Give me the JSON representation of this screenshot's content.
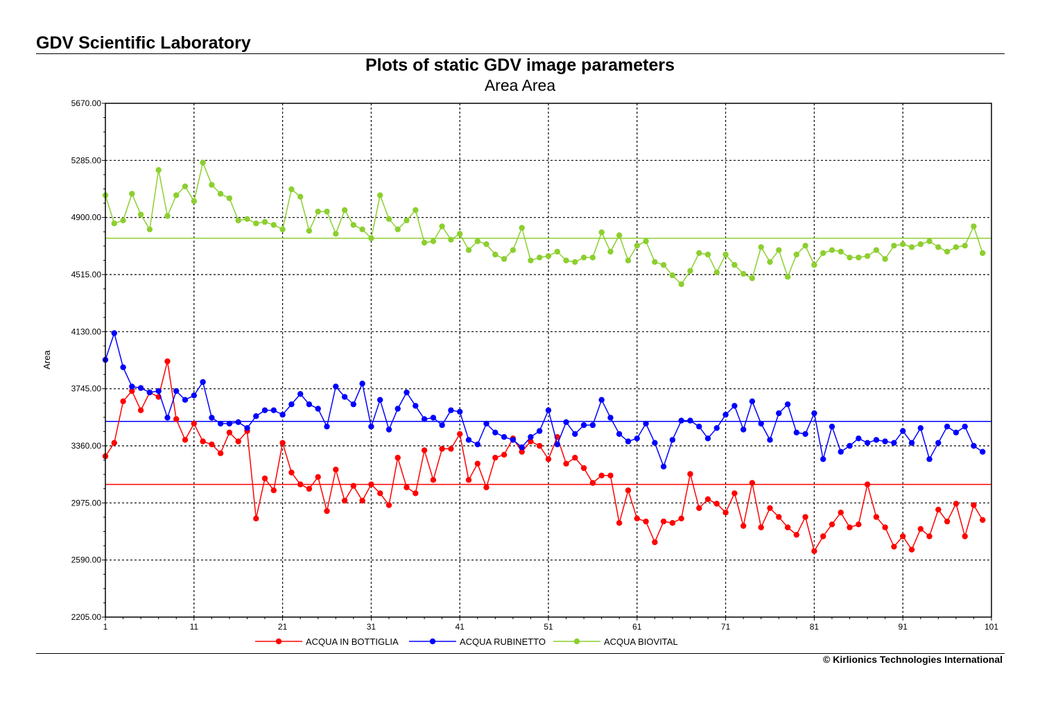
{
  "header": {
    "lab_title": "GDV Scientific Laboratory"
  },
  "footer": {
    "copyright": "© Kirlionics Technologies International"
  },
  "chart_data": {
    "type": "line",
    "title": "Plots of static GDV image parameters",
    "subtitle": "Area Area",
    "xlabel": "",
    "ylabel": "Area",
    "xlim": [
      1,
      101
    ],
    "ylim": [
      2205,
      5670
    ],
    "x_ticks": [
      1,
      11,
      21,
      31,
      41,
      51,
      61,
      71,
      81,
      91,
      101
    ],
    "y_ticks": [
      2205,
      2590,
      2975,
      3360,
      3745,
      4130,
      4515,
      4900,
      5285,
      5670
    ],
    "y_tick_labels": [
      "2205.00",
      "2590.00",
      "2975.00",
      "3360.00",
      "3745.00",
      "4130.00",
      "4515.00",
      "4900.00",
      "5285.00",
      "5670.00"
    ],
    "grid": true,
    "legend_position": "bottom",
    "series": [
      {
        "name": "ACQUA IN BOTTIGLIA",
        "color": "#ff0000",
        "mean": 3100,
        "values": [
          3290,
          3380,
          3660,
          3730,
          3600,
          3720,
          3690,
          3930,
          3540,
          3400,
          3510,
          3390,
          3370,
          3310,
          3450,
          3390,
          3460,
          2870,
          3140,
          3060,
          3380,
          3180,
          3100,
          3070,
          3150,
          2920,
          3200,
          2990,
          3090,
          2990,
          3100,
          3040,
          2960,
          3280,
          3080,
          3040,
          3330,
          3130,
          3340,
          3340,
          3440,
          3130,
          3240,
          3080,
          3280,
          3300,
          3410,
          3320,
          3390,
          3360,
          3270,
          3420,
          3240,
          3280,
          3210,
          3110,
          3160,
          3160,
          2840,
          3060,
          2870,
          2850,
          2710,
          2850,
          2840,
          2870,
          3170,
          2940,
          3000,
          2970,
          2910,
          3040,
          2820,
          3110,
          2810,
          2940,
          2880,
          2810,
          2760,
          2880,
          2650,
          2750,
          2830,
          2910,
          2810,
          2830,
          3100,
          2880,
          2810,
          2680,
          2750,
          2660,
          2800,
          2750,
          2930,
          2850,
          2970,
          2750,
          2960,
          2860
        ]
      },
      {
        "name": "ACQUA RUBINETTO",
        "color": "#0000ff",
        "mean": 3525,
        "values": [
          3940,
          4120,
          3890,
          3760,
          3750,
          3720,
          3730,
          3550,
          3730,
          3670,
          3700,
          3790,
          3550,
          3510,
          3510,
          3520,
          3480,
          3560,
          3600,
          3600,
          3570,
          3640,
          3710,
          3640,
          3610,
          3490,
          3760,
          3690,
          3640,
          3780,
          3490,
          3670,
          3470,
          3610,
          3720,
          3630,
          3540,
          3550,
          3500,
          3600,
          3590,
          3400,
          3370,
          3510,
          3450,
          3420,
          3400,
          3350,
          3420,
          3460,
          3600,
          3370,
          3520,
          3440,
          3500,
          3500,
          3670,
          3550,
          3440,
          3390,
          3410,
          3510,
          3380,
          3220,
          3400,
          3530,
          3530,
          3490,
          3410,
          3480,
          3570,
          3630,
          3470,
          3660,
          3510,
          3400,
          3580,
          3640,
          3450,
          3440,
          3580,
          3270,
          3490,
          3320,
          3360,
          3410,
          3380,
          3400,
          3390,
          3380,
          3460,
          3380,
          3480,
          3270,
          3380,
          3490,
          3450,
          3490,
          3360,
          3320
        ]
      },
      {
        "name": "ACQUA BIOVITAL",
        "color": "#8ccf2f",
        "mean": 4760,
        "values": [
          5050,
          4860,
          4880,
          5060,
          4920,
          4820,
          5220,
          4910,
          5050,
          5110,
          5010,
          5270,
          5120,
          5060,
          5030,
          4880,
          4890,
          4860,
          4870,
          4850,
          4820,
          5090,
          5040,
          4810,
          4940,
          4940,
          4790,
          4950,
          4850,
          4820,
          4760,
          5050,
          4890,
          4820,
          4880,
          4950,
          4730,
          4740,
          4840,
          4750,
          4790,
          4680,
          4740,
          4720,
          4650,
          4620,
          4680,
          4830,
          4610,
          4630,
          4640,
          4670,
          4610,
          4600,
          4630,
          4630,
          4800,
          4670,
          4780,
          4610,
          4710,
          4740,
          4600,
          4580,
          4510,
          4450,
          4540,
          4660,
          4650,
          4530,
          4650,
          4580,
          4520,
          4490,
          4700,
          4600,
          4680,
          4500,
          4650,
          4710,
          4580,
          4660,
          4680,
          4670,
          4630,
          4630,
          4640,
          4680,
          4620,
          4710,
          4720,
          4700,
          4720,
          4740,
          4700,
          4670,
          4700,
          4710,
          4840,
          4660
        ]
      }
    ]
  }
}
